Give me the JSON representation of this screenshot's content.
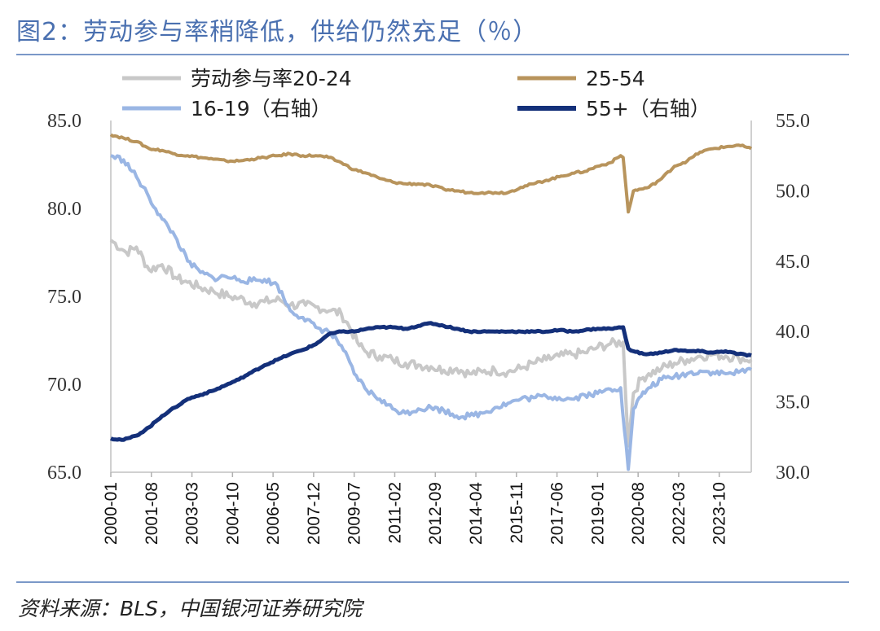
{
  "header": {
    "title": "图2：劳动参与率稍降低，供给仍然充足（％）"
  },
  "footer": {
    "source": "资料来源：BLS，中国银河证券研究院"
  },
  "chart_data": {
    "type": "line",
    "title": "图2：劳动参与率稍降低，供给仍然充足（％）",
    "left_axis": {
      "ylim": [
        65,
        85
      ],
      "ticks": [
        "65.0",
        "70.0",
        "75.0",
        "80.0",
        "85.0"
      ]
    },
    "right_axis": {
      "ylim": [
        30,
        55
      ],
      "ticks": [
        "30.0",
        "35.0",
        "40.0",
        "45.0",
        "50.0",
        "55.0"
      ]
    },
    "x_range": [
      "2000-01",
      "2025-01"
    ],
    "x_ticks": [
      "2000-01",
      "2001-08",
      "2003-03",
      "2004-10",
      "2006-05",
      "2007-12",
      "2009-07",
      "2011-02",
      "2012-09",
      "2014-04",
      "2015-11",
      "2017-06",
      "2019-01",
      "2020-08",
      "2022-03",
      "2023-10"
    ],
    "legend_position": "top",
    "grid": false,
    "series": [
      {
        "name": "劳动参与率20-24",
        "axis": "left",
        "color": "#c8c8c8",
        "points": [
          [
            2000.0,
            78.2
          ],
          [
            2000.6,
            77.5
          ],
          [
            2001.0,
            77.8
          ],
          [
            2001.5,
            76.5
          ],
          [
            2002.0,
            76.8
          ],
          [
            2002.6,
            76.0
          ],
          [
            2003.0,
            75.8
          ],
          [
            2003.5,
            75.5
          ],
          [
            2004.0,
            75.3
          ],
          [
            2004.6,
            75.0
          ],
          [
            2005.0,
            74.9
          ],
          [
            2005.6,
            74.6
          ],
          [
            2006.0,
            74.7
          ],
          [
            2006.6,
            74.8
          ],
          [
            2007.0,
            74.5
          ],
          [
            2007.6,
            74.5
          ],
          [
            2008.0,
            74.4
          ],
          [
            2008.6,
            74.2
          ],
          [
            2009.0,
            74.0
          ],
          [
            2009.3,
            73.3
          ],
          [
            2009.7,
            72.2
          ],
          [
            2010.0,
            71.8
          ],
          [
            2010.5,
            71.6
          ],
          [
            2011.0,
            71.4
          ],
          [
            2011.5,
            71.2
          ],
          [
            2012.0,
            71.1
          ],
          [
            2012.5,
            71.0
          ],
          [
            2013.0,
            70.8
          ],
          [
            2013.5,
            70.9
          ],
          [
            2014.0,
            70.6
          ],
          [
            2014.5,
            70.7
          ],
          [
            2015.0,
            70.8
          ],
          [
            2015.5,
            70.7
          ],
          [
            2016.0,
            70.9
          ],
          [
            2016.5,
            71.2
          ],
          [
            2017.0,
            71.4
          ],
          [
            2017.5,
            71.6
          ],
          [
            2018.0,
            71.7
          ],
          [
            2018.5,
            71.8
          ],
          [
            2019.0,
            72.1
          ],
          [
            2019.5,
            72.3
          ],
          [
            2020.0,
            72.4
          ],
          [
            2020.2,
            66.5
          ],
          [
            2020.4,
            69.5
          ],
          [
            2020.7,
            70.3
          ],
          [
            2021.0,
            70.6
          ],
          [
            2021.5,
            70.9
          ],
          [
            2022.0,
            71.2
          ],
          [
            2022.5,
            71.4
          ],
          [
            2023.0,
            71.6
          ],
          [
            2023.5,
            71.7
          ],
          [
            2024.0,
            71.6
          ],
          [
            2024.5,
            71.5
          ],
          [
            2025.0,
            71.4
          ]
        ]
      },
      {
        "name": "25-54",
        "axis": "left",
        "color": "#b8945c",
        "points": [
          [
            2000.0,
            84.2
          ],
          [
            2000.5,
            84.0
          ],
          [
            2001.0,
            83.8
          ],
          [
            2001.5,
            83.4
          ],
          [
            2002.0,
            83.3
          ],
          [
            2002.5,
            83.1
          ],
          [
            2003.0,
            83.0
          ],
          [
            2003.5,
            82.9
          ],
          [
            2004.0,
            82.8
          ],
          [
            2004.5,
            82.7
          ],
          [
            2005.0,
            82.7
          ],
          [
            2005.5,
            82.8
          ],
          [
            2006.0,
            82.9
          ],
          [
            2006.5,
            83.0
          ],
          [
            2007.0,
            83.1
          ],
          [
            2007.5,
            83.0
          ],
          [
            2008.0,
            83.0
          ],
          [
            2008.5,
            82.9
          ],
          [
            2009.0,
            82.6
          ],
          [
            2009.5,
            82.2
          ],
          [
            2010.0,
            82.0
          ],
          [
            2010.5,
            81.7
          ],
          [
            2011.0,
            81.5
          ],
          [
            2011.5,
            81.4
          ],
          [
            2012.0,
            81.4
          ],
          [
            2012.5,
            81.3
          ],
          [
            2013.0,
            81.1
          ],
          [
            2013.5,
            81.0
          ],
          [
            2014.0,
            80.9
          ],
          [
            2014.5,
            80.9
          ],
          [
            2015.0,
            80.9
          ],
          [
            2015.5,
            80.9
          ],
          [
            2016.0,
            81.2
          ],
          [
            2016.5,
            81.4
          ],
          [
            2017.0,
            81.6
          ],
          [
            2017.5,
            81.8
          ],
          [
            2018.0,
            82.0
          ],
          [
            2018.5,
            82.1
          ],
          [
            2019.0,
            82.4
          ],
          [
            2019.5,
            82.6
          ],
          [
            2019.9,
            83.0
          ],
          [
            2020.0,
            82.9
          ],
          [
            2020.2,
            79.8
          ],
          [
            2020.4,
            81.0
          ],
          [
            2020.7,
            81.1
          ],
          [
            2021.0,
            81.2
          ],
          [
            2021.5,
            81.7
          ],
          [
            2022.0,
            82.4
          ],
          [
            2022.5,
            82.7
          ],
          [
            2023.0,
            83.2
          ],
          [
            2023.5,
            83.4
          ],
          [
            2024.0,
            83.5
          ],
          [
            2024.5,
            83.6
          ],
          [
            2025.0,
            83.4
          ]
        ]
      },
      {
        "name": "16-19（右轴）",
        "axis": "right",
        "color": "#9ab6e4",
        "points": [
          [
            2000.0,
            52.5
          ],
          [
            2000.5,
            52.2
          ],
          [
            2001.0,
            51.0
          ],
          [
            2001.5,
            49.5
          ],
          [
            2002.0,
            48.0
          ],
          [
            2002.5,
            46.8
          ],
          [
            2003.0,
            45.0
          ],
          [
            2003.5,
            44.2
          ],
          [
            2004.0,
            43.8
          ],
          [
            2004.5,
            43.9
          ],
          [
            2005.0,
            43.7
          ],
          [
            2005.5,
            43.6
          ],
          [
            2006.0,
            43.7
          ],
          [
            2006.5,
            43.3
          ],
          [
            2007.0,
            41.5
          ],
          [
            2007.5,
            41.0
          ],
          [
            2008.0,
            40.3
          ],
          [
            2008.5,
            40.0
          ],
          [
            2009.0,
            39.0
          ],
          [
            2009.5,
            37.0
          ],
          [
            2010.0,
            35.8
          ],
          [
            2010.5,
            35.2
          ],
          [
            2011.0,
            34.5
          ],
          [
            2011.5,
            34.2
          ],
          [
            2012.0,
            34.5
          ],
          [
            2012.5,
            34.6
          ],
          [
            2013.0,
            34.4
          ],
          [
            2013.5,
            34.0
          ],
          [
            2014.0,
            34.0
          ],
          [
            2014.5,
            34.2
          ],
          [
            2015.0,
            34.6
          ],
          [
            2015.5,
            34.9
          ],
          [
            2016.0,
            35.2
          ],
          [
            2016.5,
            35.3
          ],
          [
            2017.0,
            35.4
          ],
          [
            2017.5,
            35.3
          ],
          [
            2018.0,
            35.2
          ],
          [
            2018.5,
            35.5
          ],
          [
            2019.0,
            35.6
          ],
          [
            2019.5,
            35.9
          ],
          [
            2019.9,
            36.0
          ],
          [
            2020.2,
            30.2
          ],
          [
            2020.4,
            34.5
          ],
          [
            2020.7,
            35.4
          ],
          [
            2021.0,
            36.0
          ],
          [
            2021.5,
            36.6
          ],
          [
            2022.0,
            36.8
          ],
          [
            2022.5,
            37.0
          ],
          [
            2023.0,
            37.2
          ],
          [
            2023.5,
            37.1
          ],
          [
            2024.0,
            37.0
          ],
          [
            2024.5,
            37.1
          ],
          [
            2025.0,
            37.3
          ]
        ]
      },
      {
        "name": "55+（右轴）",
        "axis": "right",
        "color": "#14307a",
        "points": [
          [
            2000.0,
            32.4
          ],
          [
            2000.5,
            32.3
          ],
          [
            2001.0,
            32.6
          ],
          [
            2001.5,
            33.2
          ],
          [
            2002.0,
            34.0
          ],
          [
            2002.5,
            34.6
          ],
          [
            2003.0,
            35.2
          ],
          [
            2003.5,
            35.5
          ],
          [
            2004.0,
            35.8
          ],
          [
            2004.5,
            36.2
          ],
          [
            2005.0,
            36.6
          ],
          [
            2005.5,
            37.1
          ],
          [
            2006.0,
            37.6
          ],
          [
            2006.5,
            38.0
          ],
          [
            2007.0,
            38.4
          ],
          [
            2007.5,
            38.7
          ],
          [
            2008.0,
            39.1
          ],
          [
            2008.5,
            39.8
          ],
          [
            2009.0,
            40.0
          ],
          [
            2009.5,
            40.0
          ],
          [
            2010.0,
            40.2
          ],
          [
            2010.5,
            40.3
          ],
          [
            2011.0,
            40.3
          ],
          [
            2011.5,
            40.2
          ],
          [
            2012.0,
            40.4
          ],
          [
            2012.5,
            40.6
          ],
          [
            2013.0,
            40.4
          ],
          [
            2013.5,
            40.2
          ],
          [
            2014.0,
            40.0
          ],
          [
            2014.5,
            40.0
          ],
          [
            2015.0,
            40.0
          ],
          [
            2015.5,
            40.0
          ],
          [
            2016.0,
            40.0
          ],
          [
            2016.5,
            40.0
          ],
          [
            2017.0,
            40.0
          ],
          [
            2017.5,
            40.1
          ],
          [
            2018.0,
            40.0
          ],
          [
            2018.5,
            40.1
          ],
          [
            2019.0,
            40.2
          ],
          [
            2019.5,
            40.2
          ],
          [
            2020.0,
            40.3
          ],
          [
            2020.2,
            38.8
          ],
          [
            2020.4,
            38.6
          ],
          [
            2020.8,
            38.4
          ],
          [
            2021.0,
            38.4
          ],
          [
            2021.5,
            38.5
          ],
          [
            2022.0,
            38.7
          ],
          [
            2022.5,
            38.6
          ],
          [
            2023.0,
            38.6
          ],
          [
            2023.5,
            38.5
          ],
          [
            2024.0,
            38.6
          ],
          [
            2024.5,
            38.4
          ],
          [
            2025.0,
            38.3
          ]
        ]
      }
    ]
  }
}
